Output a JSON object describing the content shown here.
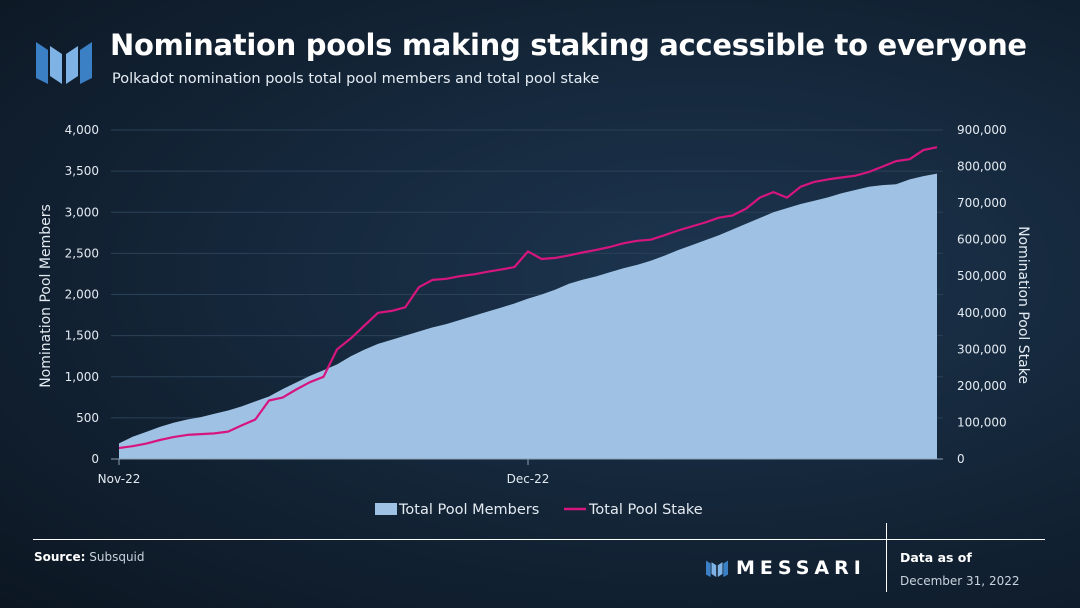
{
  "header": {
    "title": "Nomination pools making staking accessible to everyone",
    "subtitle": "Polkadot nomination pools total pool members and total pool stake",
    "logo_icon": "messari-m-logo-icon"
  },
  "footer": {
    "source_label": "Source:",
    "source_value": "Subsquid",
    "brand": "MESSARI",
    "as_of_label": "Data as of",
    "as_of_date": "December 31, 2022"
  },
  "colors": {
    "members_fill": "#9fc2e4",
    "stake_line": "#d6157f",
    "logo_blue": "#3b7fc4",
    "logo_light": "#7fb3e6"
  },
  "chart_data": {
    "type": "area",
    "xlabel": "",
    "ylabel_left": "Nomination Pool Members",
    "ylabel_right": "Nomination Pool Stake",
    "x_ticks": [
      "Nov-22",
      "Dec-22"
    ],
    "x_range": [
      "2022-11-01",
      "2022-12-31"
    ],
    "ylim_left": [
      0,
      4000
    ],
    "yticks_left": [
      "0",
      "500",
      "1,000",
      "1,500",
      "2,000",
      "2,500",
      "3,000",
      "3,500",
      "4,000"
    ],
    "ylim_right": [
      0,
      900000
    ],
    "yticks_right": [
      "0",
      "100,000",
      "200,000",
      "300,000",
      "400,000",
      "500,000",
      "600,000",
      "700,000",
      "800,000",
      "900,000"
    ],
    "grid": true,
    "legend_position": "bottom",
    "series": [
      {
        "name": "Total Pool Members",
        "type": "area",
        "axis": "left",
        "points": [
          [
            "2022-11-01",
            190
          ],
          [
            "2022-11-02",
            270
          ],
          [
            "2022-11-03",
            330
          ],
          [
            "2022-11-04",
            390
          ],
          [
            "2022-11-05",
            440
          ],
          [
            "2022-11-06",
            480
          ],
          [
            "2022-11-07",
            510
          ],
          [
            "2022-11-08",
            550
          ],
          [
            "2022-11-09",
            590
          ],
          [
            "2022-11-10",
            640
          ],
          [
            "2022-11-11",
            700
          ],
          [
            "2022-11-12",
            760
          ],
          [
            "2022-11-13",
            850
          ],
          [
            "2022-11-14",
            930
          ],
          [
            "2022-11-15",
            1010
          ],
          [
            "2022-11-16",
            1080
          ],
          [
            "2022-11-17",
            1150
          ],
          [
            "2022-11-18",
            1250
          ],
          [
            "2022-11-19",
            1330
          ],
          [
            "2022-11-20",
            1400
          ],
          [
            "2022-11-21",
            1450
          ],
          [
            "2022-11-22",
            1500
          ],
          [
            "2022-11-23",
            1550
          ],
          [
            "2022-11-24",
            1600
          ],
          [
            "2022-11-25",
            1640
          ],
          [
            "2022-11-26",
            1690
          ],
          [
            "2022-11-27",
            1740
          ],
          [
            "2022-11-28",
            1790
          ],
          [
            "2022-11-29",
            1840
          ],
          [
            "2022-11-30",
            1890
          ],
          [
            "2022-12-01",
            1950
          ],
          [
            "2022-12-02",
            2000
          ],
          [
            "2022-12-03",
            2060
          ],
          [
            "2022-12-04",
            2130
          ],
          [
            "2022-12-05",
            2180
          ],
          [
            "2022-12-06",
            2220
          ],
          [
            "2022-12-07",
            2270
          ],
          [
            "2022-12-08",
            2320
          ],
          [
            "2022-12-09",
            2360
          ],
          [
            "2022-12-10",
            2410
          ],
          [
            "2022-12-11",
            2470
          ],
          [
            "2022-12-12",
            2540
          ],
          [
            "2022-12-13",
            2600
          ],
          [
            "2022-12-14",
            2660
          ],
          [
            "2022-12-15",
            2720
          ],
          [
            "2022-12-16",
            2790
          ],
          [
            "2022-12-17",
            2860
          ],
          [
            "2022-12-18",
            2930
          ],
          [
            "2022-12-19",
            3000
          ],
          [
            "2022-12-20",
            3050
          ],
          [
            "2022-12-21",
            3100
          ],
          [
            "2022-12-22",
            3140
          ],
          [
            "2022-12-23",
            3180
          ],
          [
            "2022-12-24",
            3230
          ],
          [
            "2022-12-25",
            3270
          ],
          [
            "2022-12-26",
            3310
          ],
          [
            "2022-12-27",
            3330
          ],
          [
            "2022-12-28",
            3340
          ],
          [
            "2022-12-29",
            3400
          ],
          [
            "2022-12-30",
            3440
          ],
          [
            "2022-12-31",
            3470
          ]
        ]
      },
      {
        "name": "Total Pool Stake",
        "type": "line",
        "axis": "right",
        "points": [
          [
            "2022-11-01",
            30000
          ],
          [
            "2022-11-02",
            35000
          ],
          [
            "2022-11-03",
            42000
          ],
          [
            "2022-11-04",
            52000
          ],
          [
            "2022-11-05",
            60000
          ],
          [
            "2022-11-06",
            66000
          ],
          [
            "2022-11-07",
            68000
          ],
          [
            "2022-11-08",
            70000
          ],
          [
            "2022-11-09",
            75000
          ],
          [
            "2022-11-10",
            92000
          ],
          [
            "2022-11-11",
            108000
          ],
          [
            "2022-11-12",
            160000
          ],
          [
            "2022-11-13",
            168000
          ],
          [
            "2022-11-14",
            190000
          ],
          [
            "2022-11-15",
            210000
          ],
          [
            "2022-11-16",
            225000
          ],
          [
            "2022-11-17",
            300000
          ],
          [
            "2022-11-18",
            330000
          ],
          [
            "2022-11-19",
            365000
          ],
          [
            "2022-11-20",
            400000
          ],
          [
            "2022-11-21",
            405000
          ],
          [
            "2022-11-22",
            415000
          ],
          [
            "2022-11-23",
            470000
          ],
          [
            "2022-11-24",
            490000
          ],
          [
            "2022-11-25",
            493000
          ],
          [
            "2022-11-26",
            500000
          ],
          [
            "2022-11-27",
            505000
          ],
          [
            "2022-11-28",
            512000
          ],
          [
            "2022-11-29",
            518000
          ],
          [
            "2022-11-30",
            525000
          ],
          [
            "2022-12-01",
            568000
          ],
          [
            "2022-12-02",
            547000
          ],
          [
            "2022-12-03",
            550000
          ],
          [
            "2022-12-04",
            557000
          ],
          [
            "2022-12-05",
            565000
          ],
          [
            "2022-12-06",
            572000
          ],
          [
            "2022-12-07",
            580000
          ],
          [
            "2022-12-08",
            590000
          ],
          [
            "2022-12-09",
            597000
          ],
          [
            "2022-12-10",
            600000
          ],
          [
            "2022-12-11",
            612000
          ],
          [
            "2022-12-12",
            625000
          ],
          [
            "2022-12-13",
            636000
          ],
          [
            "2022-12-14",
            647000
          ],
          [
            "2022-12-15",
            660000
          ],
          [
            "2022-12-16",
            666000
          ],
          [
            "2022-12-17",
            685000
          ],
          [
            "2022-12-18",
            715000
          ],
          [
            "2022-12-19",
            730000
          ],
          [
            "2022-12-20",
            715000
          ],
          [
            "2022-12-21",
            745000
          ],
          [
            "2022-12-22",
            758000
          ],
          [
            "2022-12-23",
            765000
          ],
          [
            "2022-12-24",
            770000
          ],
          [
            "2022-12-25",
            775000
          ],
          [
            "2022-12-26",
            785000
          ],
          [
            "2022-12-27",
            800000
          ],
          [
            "2022-12-28",
            815000
          ],
          [
            "2022-12-29",
            820000
          ],
          [
            "2022-12-30",
            845000
          ],
          [
            "2022-12-31",
            853000
          ]
        ]
      }
    ]
  }
}
